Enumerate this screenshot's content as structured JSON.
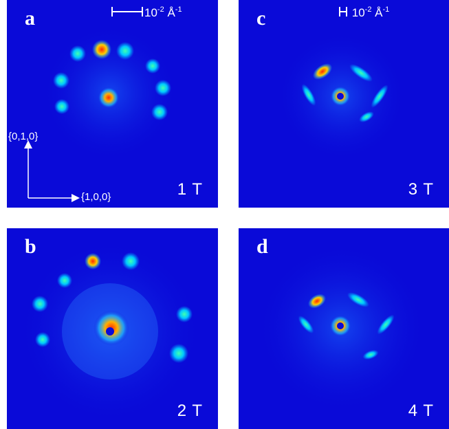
{
  "panels": [
    {
      "letter": "a",
      "field": "1 T",
      "scale_value": "10",
      "scale_exp": "-2",
      "scale_unit": "Å",
      "scale_unit_exp": "-1",
      "axis_y": "{0,1,0}",
      "axis_x": "{1,0,0}"
    },
    {
      "letter": "b",
      "field": "2 T"
    },
    {
      "letter": "c",
      "field": "3 T",
      "scale_value": "10",
      "scale_exp": "-2",
      "scale_unit": "Å",
      "scale_unit_exp": "-1"
    },
    {
      "letter": "d",
      "field": "4 T"
    }
  ],
  "colors": {
    "background": "#0a0ad8",
    "text": "#ffffff"
  }
}
